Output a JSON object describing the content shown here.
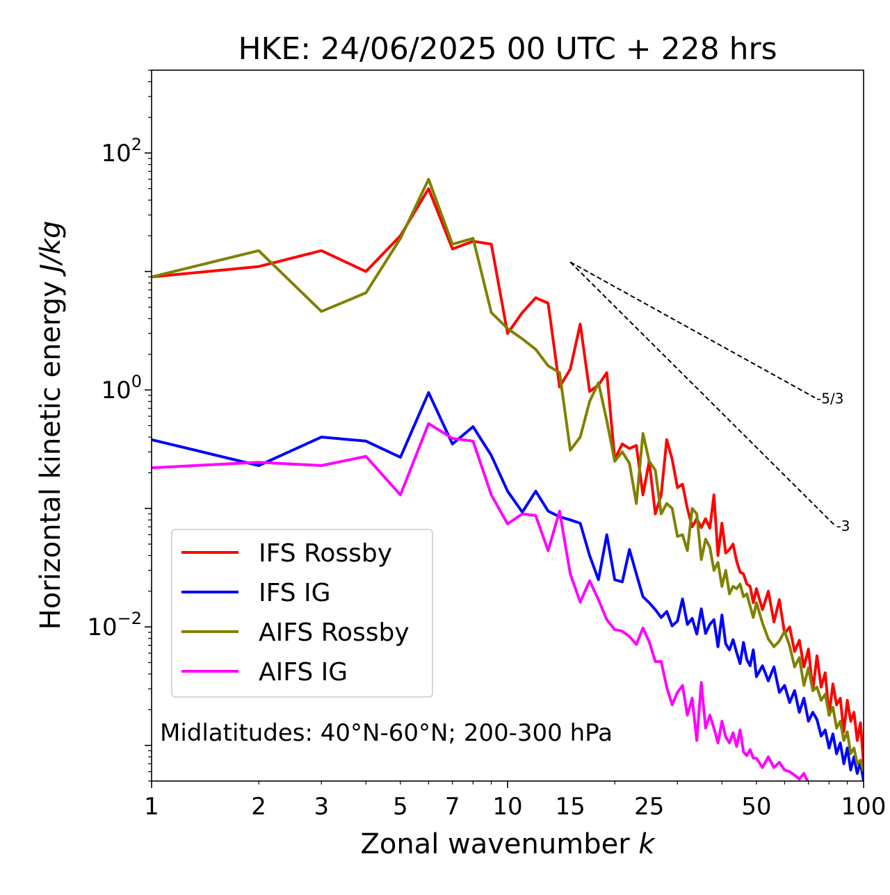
{
  "chart_data": {
    "type": "line",
    "title": "HKE: 24/06/2025 00 UTC + 228 hrs",
    "xlabel": "Zonal wavenumber",
    "xlabel_symbol": "k",
    "ylabel": "Horizontal kinetic energy",
    "ylabel_unit": "J/kg",
    "xscale": "log",
    "yscale": "log",
    "xlim": [
      1,
      100
    ],
    "ylim": [
      0.0005,
      500
    ],
    "x_ticks": [
      1,
      2,
      3,
      5,
      7,
      10,
      15,
      25,
      50,
      100
    ],
    "x_tick_labels": [
      "1",
      "2",
      "3",
      "5",
      "7",
      "10",
      "15",
      "25",
      "50",
      "100"
    ],
    "y_ticks": [
      100,
      1,
      0.01
    ],
    "y_tick_labels": [
      {
        "base": "10",
        "exp": "2"
      },
      {
        "base": "10",
        "exp": "0"
      },
      {
        "base": "10",
        "exp": "−2"
      }
    ],
    "legend_position": "lower-left",
    "annotation": "Midlatitudes: 40°N-60°N; 200-300 hPa",
    "reference_slopes": [
      {
        "label": "-5/3",
        "x": [
          15,
          73
        ],
        "y": [
          12.0,
          0.86
        ]
      },
      {
        "label": "-3",
        "x": [
          15,
          83
        ],
        "y": [
          12.0,
          0.072
        ]
      }
    ],
    "series": [
      {
        "name": "IFS Rossby",
        "color": "#ff0000",
        "x": [
          1,
          2,
          3,
          4,
          5,
          6,
          7,
          8,
          9,
          10,
          11,
          12,
          13,
          14,
          15,
          16,
          17,
          18,
          19,
          20,
          21,
          22,
          23,
          24,
          25,
          26,
          27,
          28,
          29,
          30,
          31,
          32,
          33,
          34,
          35,
          36,
          37,
          38,
          39,
          40,
          41,
          42,
          43,
          44,
          45,
          46,
          47,
          48,
          49,
          50,
          52,
          54,
          56,
          58,
          60,
          62,
          64,
          66,
          68,
          70,
          72,
          74,
          76,
          78,
          80,
          82,
          84,
          86,
          88,
          90,
          92,
          94,
          96,
          98,
          100
        ],
        "y": [
          9.0,
          11.0,
          15.0,
          10.0,
          20.0,
          50.0,
          15.5,
          18.0,
          17.0,
          3.0,
          4.5,
          6.0,
          5.4,
          1.06,
          1.5,
          3.6,
          0.97,
          1.1,
          1.4,
          0.26,
          0.35,
          0.32,
          0.34,
          0.13,
          0.25,
          0.09,
          0.13,
          0.38,
          0.26,
          0.15,
          0.16,
          0.1,
          0.07,
          0.082,
          0.069,
          0.082,
          0.068,
          0.13,
          0.04,
          0.075,
          0.042,
          0.045,
          0.05,
          0.036,
          0.029,
          0.028,
          0.023,
          0.022,
          0.016,
          0.021,
          0.014,
          0.02,
          0.011,
          0.017,
          0.0088,
          0.01,
          0.0062,
          0.0077,
          0.0046,
          0.0065,
          0.0029,
          0.0057,
          0.0031,
          0.0041,
          0.0018,
          0.0033,
          0.0022,
          0.0025,
          0.0013,
          0.0024,
          0.0016,
          0.0019,
          0.0011,
          0.00155,
          0.0007
        ]
      },
      {
        "name": "IFS IG",
        "color": "#0000ff",
        "x": [
          1,
          2,
          3,
          4,
          5,
          6,
          7,
          8,
          9,
          10,
          11,
          12,
          13,
          14,
          15,
          16,
          17,
          18,
          19,
          20,
          21,
          22,
          23,
          24,
          25,
          26,
          27,
          28,
          29,
          30,
          31,
          32,
          33,
          34,
          35,
          36,
          37,
          38,
          39,
          40,
          41,
          42,
          43,
          44,
          45,
          46,
          47,
          48,
          49,
          50,
          52,
          54,
          56,
          58,
          60,
          62,
          64,
          66,
          68,
          70,
          72,
          74,
          76,
          78,
          80,
          82,
          84,
          86,
          88,
          90,
          92,
          94,
          96,
          98,
          100
        ],
        "y": [
          0.38,
          0.23,
          0.4,
          0.37,
          0.27,
          0.95,
          0.35,
          0.49,
          0.28,
          0.14,
          0.093,
          0.14,
          0.095,
          0.085,
          0.08,
          0.075,
          0.04,
          0.025,
          0.06,
          0.025,
          0.024,
          0.045,
          0.028,
          0.018,
          0.016,
          0.014,
          0.012,
          0.0135,
          0.0102,
          0.0112,
          0.0172,
          0.0105,
          0.0118,
          0.0087,
          0.0142,
          0.0088,
          0.0105,
          0.0115,
          0.0068,
          0.0126,
          0.0072,
          0.0064,
          0.0078,
          0.0061,
          0.0049,
          0.0074,
          0.0053,
          0.0047,
          0.0064,
          0.0038,
          0.0047,
          0.0035,
          0.0046,
          0.0028,
          0.0032,
          0.0023,
          0.0029,
          0.0019,
          0.0025,
          0.0016,
          0.0019,
          0.00165,
          0.0012,
          0.00135,
          0.00095,
          0.00125,
          0.00085,
          0.00105,
          0.0007,
          0.00095,
          0.00062,
          0.0008,
          0.00058,
          0.00072,
          0.0005
        ]
      },
      {
        "name": "AIFS Rossby",
        "color": "#808000",
        "x": [
          1,
          2,
          3,
          4,
          5,
          6,
          7,
          8,
          9,
          10,
          11,
          12,
          13,
          14,
          15,
          16,
          17,
          18,
          19,
          20,
          21,
          22,
          23,
          24,
          25,
          26,
          27,
          28,
          29,
          30,
          31,
          32,
          33,
          34,
          35,
          36,
          37,
          38,
          39,
          40,
          41,
          42,
          43,
          44,
          45,
          46,
          47,
          48,
          49,
          50,
          52,
          54,
          56,
          58,
          60,
          62,
          64,
          66,
          68,
          70,
          72,
          74,
          76,
          78,
          80,
          82,
          84,
          86,
          88,
          90,
          92,
          94,
          96,
          98,
          100
        ],
        "y": [
          9.0,
          15.0,
          4.6,
          6.6,
          19.0,
          60.0,
          17.0,
          19.0,
          4.5,
          3.3,
          2.7,
          2.2,
          1.6,
          1.4,
          0.31,
          0.4,
          0.8,
          1.15,
          0.55,
          0.25,
          0.3,
          0.24,
          0.11,
          0.43,
          0.25,
          0.21,
          0.09,
          0.11,
          0.1,
          0.058,
          0.06,
          0.044,
          0.1,
          0.09,
          0.037,
          0.055,
          0.047,
          0.03,
          0.035,
          0.022,
          0.03,
          0.019,
          0.022,
          0.021,
          0.023,
          0.018,
          0.019,
          0.015,
          0.012,
          0.016,
          0.0108,
          0.0079,
          0.0068,
          0.0076,
          0.0092,
          0.0069,
          0.0046,
          0.0055,
          0.0032,
          0.0045,
          0.0029,
          0.0031,
          0.0024,
          0.0027,
          0.0018,
          0.0021,
          0.0014,
          0.0016,
          0.0011,
          0.0013,
          0.00085,
          0.00095,
          0.0007,
          0.00075,
          0.0006
        ]
      },
      {
        "name": "AIFS IG",
        "color": "#ff00ff",
        "x": [
          1,
          2,
          3,
          4,
          5,
          6,
          7,
          8,
          9,
          10,
          11,
          12,
          13,
          14,
          15,
          16,
          17,
          18,
          19,
          20,
          21,
          22,
          23,
          24,
          25,
          26,
          27,
          28,
          29,
          30,
          31,
          32,
          33,
          34,
          35,
          36,
          37,
          38,
          39,
          40,
          41,
          42,
          43,
          44,
          45,
          46,
          47,
          48,
          49,
          50,
          52,
          54,
          56,
          58,
          60,
          62,
          64,
          66,
          68,
          70
        ],
        "y": [
          0.22,
          0.245,
          0.23,
          0.275,
          0.13,
          0.52,
          0.39,
          0.37,
          0.13,
          0.074,
          0.09,
          0.087,
          0.044,
          0.095,
          0.028,
          0.0162,
          0.0245,
          0.017,
          0.0115,
          0.0095,
          0.0092,
          0.0083,
          0.0071,
          0.0098,
          0.0075,
          0.0051,
          0.0051,
          0.0031,
          0.0022,
          0.0028,
          0.0032,
          0.0018,
          0.0025,
          0.0011,
          0.0034,
          0.0014,
          0.0018,
          0.0014,
          0.00105,
          0.0016,
          0.00118,
          0.00105,
          0.00128,
          0.00098,
          0.00135,
          0.00088,
          0.00082,
          0.00092,
          0.00078,
          0.00078,
          0.00065,
          0.0008,
          0.00065,
          0.00072,
          0.00062,
          0.0006,
          0.00056,
          0.00052,
          0.00058,
          0.00048
        ]
      }
    ]
  }
}
